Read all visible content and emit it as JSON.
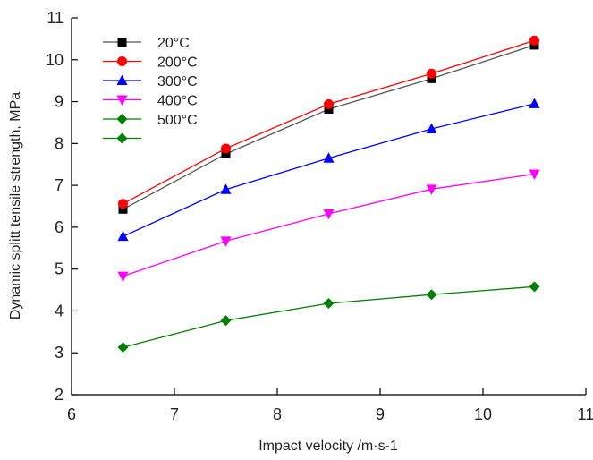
{
  "chart_data": {
    "type": "line",
    "xlabel": "Impact velocity /m·s-1",
    "ylabel": "Dynamic splitt tensile strength, MPa",
    "xlim": [
      6,
      11
    ],
    "ylim": [
      2,
      11
    ],
    "xticks": [
      "6",
      "7",
      "8",
      "9",
      "10",
      "11"
    ],
    "yticks": [
      "2",
      "3",
      "4",
      "5",
      "6",
      "7",
      "8",
      "9",
      "10",
      "11"
    ],
    "x": [
      6.5,
      7.5,
      8.5,
      9.5,
      10.5
    ],
    "grid": false,
    "legend_position": "top-left",
    "series": [
      {
        "name": "20°C",
        "values": [
          6.43,
          7.75,
          8.82,
          9.55,
          10.35
        ],
        "color": "#000000",
        "line_color": "#555555",
        "marker": "square"
      },
      {
        "name": "200°C",
        "values": [
          6.56,
          7.88,
          8.94,
          9.67,
          10.46
        ],
        "color": "#ff0000",
        "line_color": "#ff0000",
        "marker": "circle"
      },
      {
        "name": "300°C",
        "values": [
          5.78,
          6.9,
          7.65,
          8.35,
          8.95
        ],
        "color": "#0000ff",
        "line_color": "#0000ff",
        "marker": "triangle-up"
      },
      {
        "name": "400°C",
        "values": [
          4.83,
          5.67,
          6.32,
          6.91,
          7.27
        ],
        "color": "#ff00ff",
        "line_color": "#ff00ff",
        "marker": "triangle-down"
      },
      {
        "name": "500°C",
        "values": [
          3.13,
          3.77,
          4.18,
          4.39,
          4.58
        ],
        "color": "#008000",
        "line_color": "#008000",
        "marker": "diamond"
      }
    ],
    "legend_labels": [
      "20°C",
      "200°C",
      "300°C",
      "400°C",
      "500°C",
      ""
    ]
  }
}
